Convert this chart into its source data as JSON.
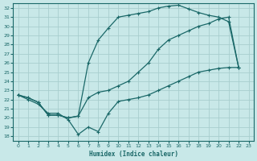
{
  "xlabel": "Humidex (Indice chaleur)",
  "bg_color": "#c8e8e8",
  "grid_color": "#a8cece",
  "line_color": "#1a6868",
  "xlim": [
    -0.5,
    23.5
  ],
  "ylim": [
    17.5,
    32.5
  ],
  "xticks": [
    0,
    1,
    2,
    3,
    4,
    5,
    6,
    7,
    8,
    9,
    10,
    11,
    12,
    13,
    14,
    15,
    16,
    17,
    18,
    19,
    20,
    21,
    22,
    23
  ],
  "yticks": [
    18,
    19,
    20,
    21,
    22,
    23,
    24,
    25,
    26,
    27,
    28,
    29,
    30,
    31,
    32
  ],
  "curve_top_x": [
    0,
    1,
    2,
    3,
    4,
    5,
    6,
    7,
    8,
    9,
    10,
    11,
    12,
    13,
    14,
    15,
    16,
    17,
    18,
    19,
    20,
    21,
    22
  ],
  "curve_top_y": [
    22.5,
    22.2,
    21.7,
    20.3,
    20.3,
    20.0,
    20.2,
    26.0,
    28.5,
    29.8,
    31.0,
    31.2,
    31.4,
    31.6,
    32.0,
    32.2,
    32.3,
    31.9,
    31.5,
    31.2,
    31.0,
    30.5,
    25.5
  ],
  "curve_mid_x": [
    0,
    1,
    2,
    3,
    4,
    5,
    6,
    7,
    8,
    9,
    10,
    11,
    12,
    13,
    14,
    15,
    16,
    17,
    18,
    19,
    20,
    21,
    22
  ],
  "curve_mid_y": [
    22.5,
    22.2,
    21.7,
    20.3,
    20.3,
    20.0,
    20.2,
    22.2,
    22.8,
    23.0,
    23.5,
    24.0,
    25.0,
    26.0,
    27.5,
    28.5,
    29.0,
    29.5,
    30.0,
    30.3,
    30.8,
    31.0,
    25.5
  ],
  "curve_bot_x": [
    0,
    1,
    2,
    3,
    4,
    5,
    6,
    7,
    8,
    9,
    10,
    11,
    12,
    13,
    14,
    15,
    16,
    17,
    18,
    19,
    20,
    21,
    22
  ],
  "curve_bot_y": [
    22.5,
    22.0,
    21.5,
    20.5,
    20.5,
    19.8,
    18.2,
    19.0,
    18.5,
    20.5,
    21.8,
    22.0,
    22.2,
    22.5,
    23.0,
    23.5,
    24.0,
    24.5,
    25.0,
    25.2,
    25.4,
    25.5,
    25.5
  ]
}
